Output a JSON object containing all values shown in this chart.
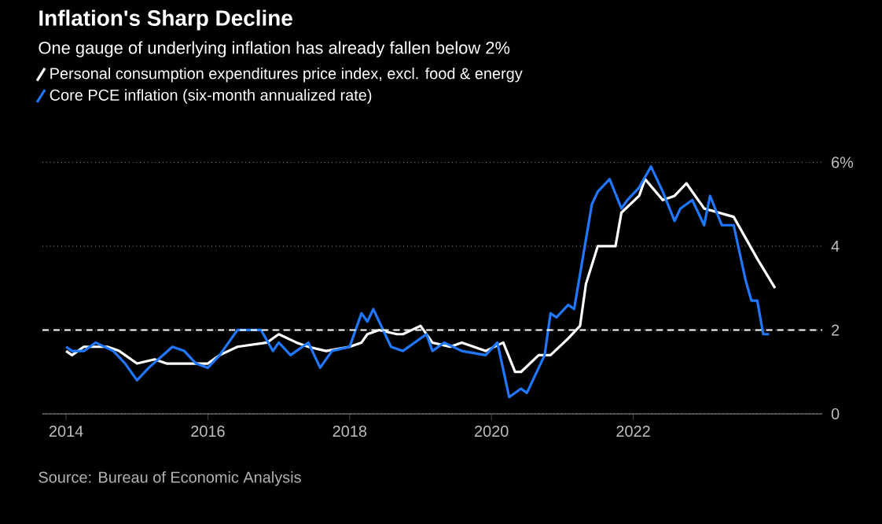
{
  "chart_data": {
    "type": "line",
    "title": "Inflation's Sharp Decline",
    "subtitle": "One gauge of underlying inflation has already fallen below 2%",
    "annotations": [
      "Source: Bureau of Economic Analysis"
    ],
    "xlim": [
      "2013-09",
      "2024-09"
    ],
    "xticks": [
      "2014",
      "2016",
      "2018",
      "2020",
      "2022"
    ],
    "ylim": [
      0,
      6.1
    ],
    "yticks": [
      0,
      2,
      4,
      {
        "value": 6,
        "label": "6%"
      }
    ],
    "grid": "y",
    "legend": "top left",
    "line_style": "solid",
    "ref_lines": [
      {
        "axis": "y",
        "value": 2,
        "color": "#ffffff",
        "line_style": "dashed"
      }
    ],
    "series": [
      {
        "name": "Personal consumption expenditures price index, excl. food & energy",
        "color": "#ffffff",
        "x": [
          "2014-01",
          "2014-02",
          "2014-04",
          "2014-08",
          "2014-10",
          "2015-01",
          "2015-04",
          "2015-06",
          "2015-09",
          "2016-01",
          "2016-03",
          "2016-06",
          "2016-11",
          "2017-01",
          "2017-04",
          "2017-06",
          "2017-09",
          "2018-01",
          "2018-03",
          "2018-04",
          "2018-06",
          "2018-09",
          "2018-10",
          "2019-01",
          "2019-03",
          "2019-06",
          "2019-08",
          "2019-12",
          "2020-03",
          "2020-05",
          "2020-06",
          "2020-09",
          "2020-11",
          "2021-02",
          "2021-04",
          "2021-05",
          "2021-07",
          "2021-10",
          "2021-11",
          "2022-02",
          "2022-03",
          "2022-06",
          "2022-08",
          "2022-10",
          "2023-01",
          "2023-06",
          "2023-08",
          "2023-10",
          "2024-01"
        ],
        "values": [
          1.5,
          1.4,
          1.6,
          1.6,
          1.5,
          1.2,
          1.3,
          1.2,
          1.2,
          1.2,
          1.4,
          1.6,
          1.7,
          1.9,
          1.7,
          1.6,
          1.5,
          1.6,
          1.7,
          1.9,
          2.0,
          1.9,
          1.9,
          2.1,
          1.7,
          1.6,
          1.7,
          1.5,
          1.7,
          1.0,
          1.0,
          1.4,
          1.4,
          1.8,
          2.1,
          3.1,
          4.0,
          4.0,
          4.8,
          5.2,
          5.6,
          5.1,
          5.2,
          5.5,
          4.9,
          4.7,
          4.2,
          3.7,
          3.0
        ]
      },
      {
        "name": "Core PCE inflation (six-month annualized rate)",
        "color": "#1f78ff",
        "x": [
          "2014-01",
          "2014-02",
          "2014-04",
          "2014-06",
          "2014-09",
          "2014-11",
          "2015-01",
          "2015-03",
          "2015-07",
          "2015-09",
          "2015-11",
          "2016-01",
          "2016-03",
          "2016-06",
          "2016-10",
          "2016-12",
          "2017-01",
          "2017-03",
          "2017-06",
          "2017-07",
          "2017-08",
          "2017-10",
          "2018-01",
          "2018-03",
          "2018-04",
          "2018-05",
          "2018-08",
          "2018-10",
          "2018-12",
          "2019-02",
          "2019-03",
          "2019-05",
          "2019-08",
          "2019-12",
          "2020-02",
          "2020-04",
          "2020-06",
          "2020-07",
          "2020-10",
          "2020-11",
          "2020-12",
          "2021-02",
          "2021-03",
          "2021-06",
          "2021-07",
          "2021-09",
          "2021-11",
          "2021-12",
          "2022-02",
          "2022-04",
          "2022-06",
          "2022-08",
          "2022-09",
          "2022-11",
          "2023-01",
          "2023-02",
          "2023-04",
          "2023-06",
          "2023-08",
          "2023-09",
          "2023-10",
          "2023-11",
          "2023-12"
        ],
        "values": [
          1.6,
          1.5,
          1.5,
          1.7,
          1.5,
          1.2,
          0.8,
          1.1,
          1.6,
          1.5,
          1.2,
          1.1,
          1.4,
          2.0,
          2.0,
          1.5,
          1.7,
          1.4,
          1.7,
          1.4,
          1.1,
          1.5,
          1.6,
          2.4,
          2.2,
          2.5,
          1.6,
          1.5,
          1.7,
          1.9,
          1.5,
          1.7,
          1.5,
          1.4,
          1.7,
          0.4,
          0.6,
          0.5,
          1.4,
          2.4,
          2.3,
          2.6,
          2.5,
          5.0,
          5.3,
          5.6,
          4.9,
          5.1,
          5.4,
          5.9,
          5.3,
          4.6,
          4.9,
          5.1,
          4.5,
          5.2,
          4.5,
          4.5,
          3.2,
          2.7,
          2.7,
          1.9,
          1.9
        ]
      }
    ]
  }
}
